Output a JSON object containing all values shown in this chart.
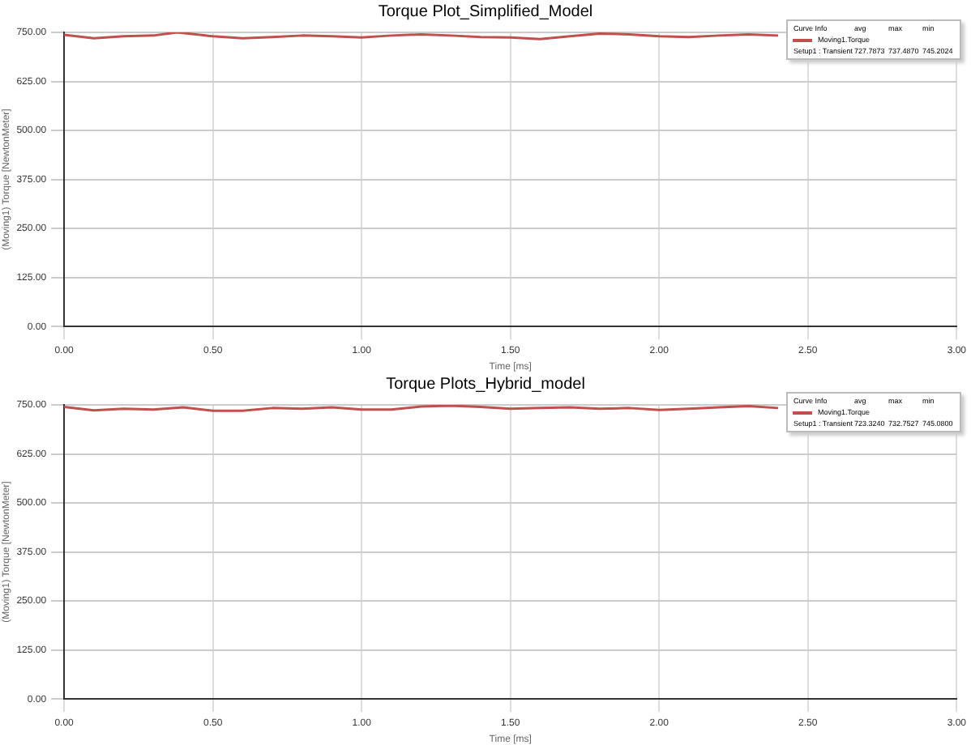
{
  "chart_data": [
    {
      "type": "line",
      "title": "Torque Plot_Simplified_Model",
      "xlabel": "Time [ms]",
      "ylabel": "(Moving1) Torque [NewtonMeter]",
      "x": [
        0,
        0.1,
        0.2,
        0.3,
        0.38,
        0.5,
        0.6,
        0.7,
        0.8,
        0.9,
        1.0,
        1.1,
        1.2,
        1.3,
        1.4,
        1.5,
        1.6,
        1.7,
        1.8,
        1.9,
        2.0,
        2.1,
        2.2,
        2.3,
        2.4
      ],
      "series": [
        {
          "name": "Moving1.Torque",
          "color": "#c0504d",
          "values": [
            744,
            735,
            740,
            742,
            750,
            740,
            735,
            738,
            742,
            740,
            737,
            742,
            745,
            742,
            738,
            737,
            733,
            740,
            747,
            745,
            740,
            738,
            742,
            745,
            742
          ]
        }
      ],
      "xlim": [
        0,
        3
      ],
      "xticks": [
        {
          "value": 0,
          "label": "0.00"
        },
        {
          "value": 0.5,
          "label": "0.50"
        },
        {
          "value": 1,
          "label": "1.00"
        },
        {
          "value": 1.5,
          "label": "1.50"
        },
        {
          "value": 2,
          "label": "2.00"
        },
        {
          "value": 2.5,
          "label": "2.50"
        },
        {
          "value": 3,
          "label": "3.00"
        }
      ],
      "ylim": [
        0,
        750
      ],
      "yticks": [
        {
          "value": 0,
          "label": "0.00"
        },
        {
          "value": 125,
          "label": "125.00"
        },
        {
          "value": 250,
          "label": "250.00"
        },
        {
          "value": 375,
          "label": "375.00"
        },
        {
          "value": 500,
          "label": "500.00"
        },
        {
          "value": 625,
          "label": "625.00"
        },
        {
          "value": 750,
          "label": "750.00"
        }
      ],
      "grid": true,
      "legend": "top right",
      "marker": "none",
      "annotations": [
        "Curve Info",
        "avg",
        "max",
        "min",
        "Setup1 : Transient",
        "727.7873",
        "737.4870",
        "745.2024"
      ]
    },
    {
      "type": "line",
      "title": "Torque Plots_Hybrid_model",
      "xlabel": "Time [ms]",
      "ylabel": "(Moving1) Torque [NewtonMeter]",
      "x": [
        0,
        0.1,
        0.2,
        0.3,
        0.4,
        0.5,
        0.6,
        0.7,
        0.8,
        0.9,
        1.0,
        1.1,
        1.2,
        1.3,
        1.4,
        1.5,
        1.6,
        1.7,
        1.8,
        1.9,
        2.0,
        2.1,
        2.2,
        2.3,
        2.4
      ],
      "series": [
        {
          "name": "Moving1.Torque",
          "color": "#c0504d",
          "values": [
            745,
            736,
            740,
            738,
            744,
            735,
            735,
            742,
            740,
            744,
            738,
            738,
            746,
            748,
            745,
            740,
            742,
            744,
            740,
            742,
            737,
            740,
            744,
            747,
            742
          ]
        }
      ],
      "xlim": [
        0,
        3
      ],
      "xticks": [
        {
          "value": 0,
          "label": "0.00"
        },
        {
          "value": 0.5,
          "label": "0.50"
        },
        {
          "value": 1,
          "label": "1.00"
        },
        {
          "value": 1.5,
          "label": "1.50"
        },
        {
          "value": 2,
          "label": "2.00"
        },
        {
          "value": 2.5,
          "label": "2.50"
        },
        {
          "value": 3,
          "label": "3.00"
        }
      ],
      "ylim": [
        0,
        750
      ],
      "yticks": [
        {
          "value": 0,
          "label": "0.00"
        },
        {
          "value": 125,
          "label": "125.00"
        },
        {
          "value": 250,
          "label": "250.00"
        },
        {
          "value": 375,
          "label": "375.00"
        },
        {
          "value": 500,
          "label": "500.00"
        },
        {
          "value": 625,
          "label": "625.00"
        },
        {
          "value": 750,
          "label": "750.00"
        }
      ],
      "grid": true,
      "legend": "top right",
      "marker": "none",
      "annotations": [
        "Curve Info",
        "avg",
        "max",
        "min",
        "Setup1 : Transient",
        "723.3240",
        "732.7527",
        "745.0800"
      ]
    }
  ]
}
